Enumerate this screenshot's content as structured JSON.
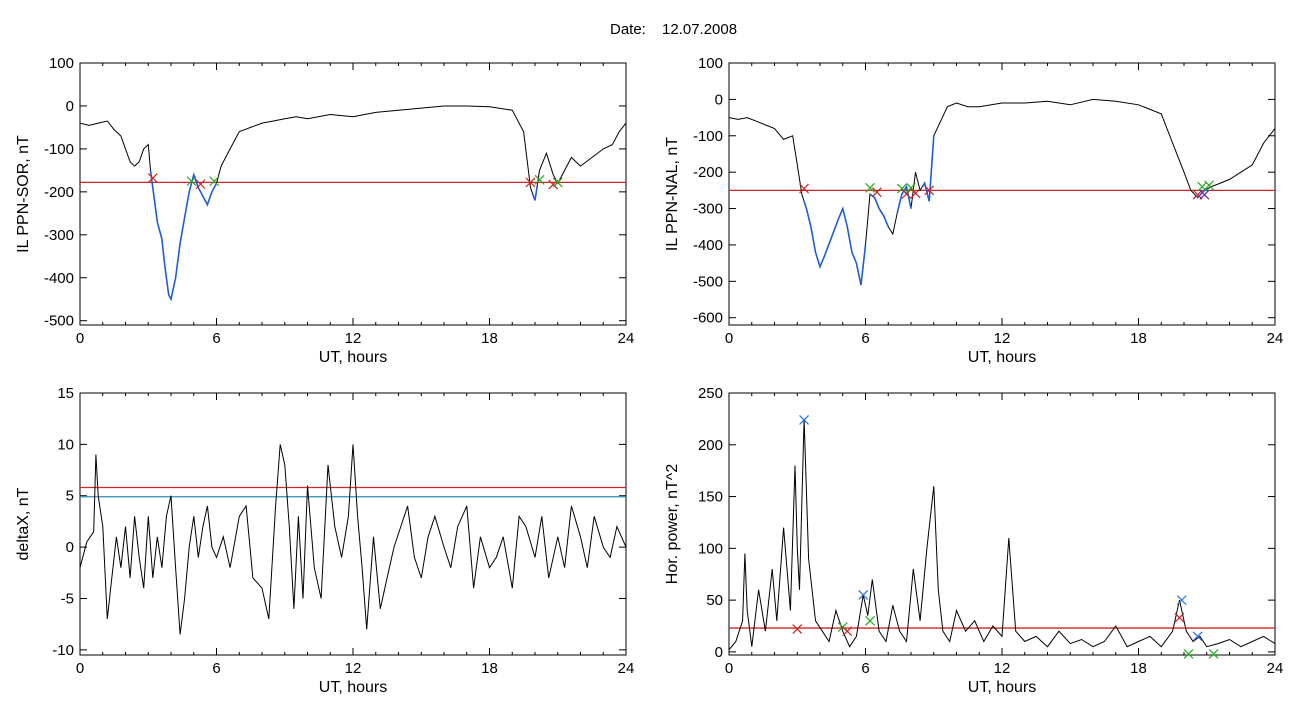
{
  "header": {
    "date_label": "Date:",
    "date_value": "12.07.2008"
  },
  "colors": {
    "background": "#ffffff",
    "axis": "#000000",
    "trace": "#000000",
    "segment": "#1f5fd6",
    "threshold_red": "#d42424",
    "threshold_cyan": "#2a8fb0",
    "marker_red": "#cc2222",
    "marker_green": "#22aa22",
    "marker_blue": "#2b6fd0",
    "marker_purple": "#6a2a9a"
  },
  "chart_data": [
    {
      "id": "ppn-sor",
      "type": "line",
      "title": "",
      "xlabel": "UT, hours",
      "ylabel": "IL PPN-SOR, nT",
      "xlim": [
        0,
        24
      ],
      "ylim": [
        -510,
        100
      ],
      "xticks": [
        0,
        6,
        12,
        18,
        24
      ],
      "yticks": [
        100,
        0,
        -100,
        -200,
        -300,
        -400,
        -500
      ],
      "x": [
        0,
        0.4,
        0.8,
        1.2,
        1.5,
        1.8,
        2.0,
        2.2,
        2.4,
        2.6,
        2.8,
        3.0,
        3.1,
        3.2,
        3.4,
        3.5,
        3.6,
        3.7,
        3.8,
        3.9,
        4.0,
        4.2,
        4.4,
        4.6,
        4.8,
        5.0,
        5.2,
        5.4,
        5.6,
        5.8,
        6.0,
        6.2,
        6.6,
        7.0,
        7.5,
        8.0,
        8.5,
        9.0,
        9.5,
        10.0,
        11.0,
        12.0,
        13.0,
        14.0,
        15.0,
        16.0,
        17.0,
        18.0,
        19.0,
        19.5,
        19.8,
        20.0,
        20.2,
        20.5,
        20.8,
        21.0,
        21.3,
        21.6,
        22.0,
        22.5,
        23.0,
        23.4,
        23.7,
        24.0
      ],
      "y": [
        -40,
        -45,
        -40,
        -35,
        -55,
        -70,
        -100,
        -130,
        -140,
        -130,
        -100,
        -90,
        -150,
        -190,
        -270,
        -290,
        -310,
        -360,
        -400,
        -440,
        -450,
        -400,
        -320,
        -260,
        -200,
        -160,
        -190,
        -210,
        -230,
        -200,
        -180,
        -140,
        -100,
        -60,
        -50,
        -40,
        -35,
        -30,
        -25,
        -30,
        -20,
        -25,
        -15,
        -10,
        -5,
        0,
        0,
        -2,
        -10,
        -60,
        -190,
        -220,
        -150,
        -110,
        -160,
        -180,
        -150,
        -120,
        -140,
        -120,
        -100,
        -90,
        -60,
        -40
      ],
      "threshold_lines": [
        {
          "value": -178,
          "color": "#d42424"
        }
      ],
      "highlight_segments": [
        [
          3.1,
          6.0
        ],
        [
          19.9,
          20.1
        ]
      ],
      "markers": [
        {
          "x": 3.2,
          "y": -168,
          "color": "#cc2222"
        },
        {
          "x": 4.9,
          "y": -175,
          "color": "#22aa22"
        },
        {
          "x": 5.3,
          "y": -182,
          "color": "#cc2222"
        },
        {
          "x": 5.9,
          "y": -175,
          "color": "#22aa22"
        },
        {
          "x": 19.8,
          "y": -178,
          "color": "#cc2222"
        },
        {
          "x": 20.2,
          "y": -172,
          "color": "#22aa22"
        },
        {
          "x": 20.8,
          "y": -183,
          "color": "#cc2222"
        },
        {
          "x": 21.0,
          "y": -178,
          "color": "#22aa22"
        }
      ]
    },
    {
      "id": "ppn-nal",
      "type": "line",
      "title": "",
      "xlabel": "UT, hours",
      "ylabel": "IL PPN-NAL, nT",
      "xlim": [
        0,
        24
      ],
      "ylim": [
        -620,
        100
      ],
      "xticks": [
        0,
        6,
        12,
        18,
        24
      ],
      "yticks": [
        100,
        0,
        -100,
        -200,
        -300,
        -400,
        -500,
        -600
      ],
      "x": [
        0,
        0.4,
        0.8,
        1.2,
        1.6,
        2.0,
        2.4,
        2.8,
        3.0,
        3.2,
        3.4,
        3.6,
        3.8,
        4.0,
        4.2,
        4.5,
        4.8,
        5.0,
        5.2,
        5.4,
        5.6,
        5.8,
        6.0,
        6.2,
        6.4,
        6.6,
        6.8,
        7.0,
        7.2,
        7.4,
        7.6,
        7.8,
        8.0,
        8.2,
        8.4,
        8.6,
        8.8,
        9.0,
        9.3,
        9.6,
        10.0,
        10.5,
        11.0,
        12.0,
        13.0,
        14.0,
        15.0,
        16.0,
        17.0,
        18.0,
        19.0,
        19.5,
        20.0,
        20.3,
        20.6,
        20.9,
        21.2,
        21.6,
        22.0,
        22.5,
        23.0,
        23.5,
        24.0
      ],
      "y": [
        -50,
        -55,
        -50,
        -60,
        -70,
        -80,
        -110,
        -100,
        -180,
        -260,
        -300,
        -350,
        -420,
        -460,
        -430,
        -380,
        -330,
        -300,
        -350,
        -420,
        -450,
        -510,
        -400,
        -260,
        -270,
        -300,
        -320,
        -350,
        -370,
        -310,
        -260,
        -240,
        -300,
        -200,
        -250,
        -230,
        -280,
        -100,
        -60,
        -20,
        -10,
        -20,
        -20,
        -10,
        -10,
        -5,
        -15,
        0,
        -5,
        -15,
        -40,
        -120,
        -200,
        -250,
        -270,
        -250,
        -240,
        -230,
        -220,
        -200,
        -180,
        -120,
        -80
      ],
      "threshold_lines": [
        {
          "value": -250,
          "color": "#d42424"
        }
      ],
      "highlight_segments": [
        [
          3.3,
          6.0
        ],
        [
          6.2,
          7.0
        ],
        [
          7.4,
          8.0
        ],
        [
          8.5,
          9.0
        ],
        [
          20.6,
          21.0
        ]
      ],
      "markers": [
        {
          "x": 3.3,
          "y": -245,
          "color": "#cc2222"
        },
        {
          "x": 6.2,
          "y": -243,
          "color": "#22aa22"
        },
        {
          "x": 6.5,
          "y": -255,
          "color": "#cc2222"
        },
        {
          "x": 7.6,
          "y": -245,
          "color": "#22aa22"
        },
        {
          "x": 7.8,
          "y": -260,
          "color": "#cc2222"
        },
        {
          "x": 8.0,
          "y": -243,
          "color": "#22aa22"
        },
        {
          "x": 8.2,
          "y": -258,
          "color": "#cc2222"
        },
        {
          "x": 8.8,
          "y": -250,
          "color": "#cc2222"
        },
        {
          "x": 20.6,
          "y": -262,
          "color": "#cc2222"
        },
        {
          "x": 20.8,
          "y": -240,
          "color": "#22aa22"
        },
        {
          "x": 20.9,
          "y": -262,
          "color": "#6a2a9a"
        },
        {
          "x": 21.1,
          "y": -236,
          "color": "#22aa22"
        }
      ]
    },
    {
      "id": "deltax",
      "type": "line",
      "title": "",
      "xlabel": "UT, hours",
      "ylabel": "deltaX, nT",
      "xlim": [
        0,
        24
      ],
      "ylim": [
        -10.5,
        15
      ],
      "xticks": [
        0,
        6,
        12,
        18,
        24
      ],
      "yticks": [
        15,
        10,
        5,
        0,
        -5,
        -10
      ],
      "x": [
        0,
        0.3,
        0.6,
        0.7,
        0.8,
        1.0,
        1.2,
        1.4,
        1.6,
        1.8,
        2.0,
        2.2,
        2.4,
        2.6,
        2.8,
        3.0,
        3.2,
        3.4,
        3.6,
        3.8,
        4.0,
        4.2,
        4.4,
        4.6,
        4.8,
        5.0,
        5.2,
        5.4,
        5.6,
        5.8,
        6.0,
        6.3,
        6.6,
        7.0,
        7.3,
        7.6,
        8.0,
        8.3,
        8.6,
        8.8,
        9.0,
        9.2,
        9.4,
        9.6,
        9.8,
        10.0,
        10.3,
        10.6,
        10.9,
        11.2,
        11.5,
        11.8,
        12.0,
        12.2,
        12.4,
        12.6,
        12.9,
        13.2,
        13.5,
        13.8,
        14.1,
        14.4,
        14.7,
        15.0,
        15.3,
        15.6,
        16.0,
        16.3,
        16.6,
        17.0,
        17.3,
        17.6,
        18.0,
        18.3,
        18.6,
        19.0,
        19.3,
        19.6,
        20.0,
        20.3,
        20.6,
        21.0,
        21.3,
        21.6,
        22.0,
        22.3,
        22.6,
        23.0,
        23.3,
        23.6,
        24.0
      ],
      "y": [
        -2,
        0.5,
        1.5,
        9,
        5,
        2,
        -7,
        -3,
        1,
        -2,
        2,
        -3,
        3,
        -1,
        -4,
        3,
        -3,
        1,
        -2,
        3,
        5,
        -2,
        -8.5,
        -5,
        0,
        3,
        -1,
        2,
        4,
        0,
        -1,
        1,
        -2,
        3,
        4,
        -3,
        -4,
        -7,
        4,
        10,
        8,
        2,
        -6,
        3,
        -5,
        6,
        -2,
        -5,
        8,
        2,
        -1,
        3,
        10,
        3,
        -2,
        -8,
        1,
        -6,
        -3,
        0,
        2,
        4,
        -1,
        -3,
        1,
        3,
        0,
        -2,
        2,
        4,
        -4,
        1,
        -2,
        -1,
        1,
        -4,
        3,
        2,
        -1,
        3,
        -3,
        1,
        -2,
        4,
        1,
        -2,
        3,
        0,
        -1,
        2,
        0
      ],
      "threshold_lines": [
        {
          "value": 5.8,
          "color": "#d42424"
        },
        {
          "value": 4.9,
          "color": "#2a8fb0"
        }
      ],
      "highlight_segments": [],
      "markers": []
    },
    {
      "id": "hor-power",
      "type": "line",
      "title": "",
      "xlabel": "UT, hours",
      "ylabel": "Hor. power, nT^2",
      "xlim": [
        0,
        24
      ],
      "ylim": [
        -3,
        250
      ],
      "xticks": [
        0,
        6,
        12,
        18,
        24
      ],
      "yticks": [
        250,
        200,
        150,
        100,
        50,
        0
      ],
      "x": [
        0,
        0.3,
        0.6,
        0.7,
        0.8,
        1.0,
        1.3,
        1.6,
        1.9,
        2.1,
        2.4,
        2.7,
        2.9,
        3.0,
        3.1,
        3.3,
        3.5,
        3.8,
        4.1,
        4.4,
        4.7,
        5.0,
        5.3,
        5.6,
        5.9,
        6.1,
        6.3,
        6.6,
        6.9,
        7.2,
        7.5,
        7.8,
        8.1,
        8.4,
        8.7,
        9.0,
        9.2,
        9.4,
        9.7,
        10.0,
        10.4,
        10.8,
        11.2,
        11.6,
        12.0,
        12.3,
        12.6,
        13.0,
        13.5,
        14.0,
        14.5,
        15.0,
        15.5,
        16.0,
        16.5,
        17.0,
        17.5,
        18.0,
        18.5,
        19.0,
        19.5,
        19.8,
        20.1,
        20.4,
        20.7,
        21.0,
        21.5,
        22.0,
        22.5,
        23.0,
        23.5,
        24.0
      ],
      "y": [
        2,
        10,
        30,
        95,
        40,
        5,
        60,
        20,
        80,
        30,
        120,
        40,
        180,
        100,
        60,
        225,
        90,
        30,
        20,
        10,
        40,
        20,
        5,
        15,
        55,
        35,
        70,
        20,
        10,
        45,
        20,
        10,
        80,
        30,
        100,
        160,
        60,
        20,
        10,
        40,
        20,
        30,
        10,
        25,
        15,
        110,
        20,
        10,
        15,
        5,
        20,
        8,
        12,
        5,
        10,
        25,
        5,
        10,
        15,
        5,
        20,
        50,
        20,
        10,
        15,
        5,
        8,
        12,
        5,
        10,
        15,
        8
      ],
      "threshold_lines": [
        {
          "value": 23,
          "color": "#d42424"
        }
      ],
      "highlight_segments": [],
      "markers": [
        {
          "x": 3.0,
          "y": 22,
          "color": "#cc2222"
        },
        {
          "x": 3.3,
          "y": 224,
          "color": "#2b6fd0"
        },
        {
          "x": 5.0,
          "y": 24,
          "color": "#22aa22"
        },
        {
          "x": 5.2,
          "y": 20,
          "color": "#cc2222"
        },
        {
          "x": 5.9,
          "y": 55,
          "color": "#2b6fd0"
        },
        {
          "x": 6.2,
          "y": 30,
          "color": "#22aa22"
        },
        {
          "x": 19.8,
          "y": 33,
          "color": "#cc2222"
        },
        {
          "x": 19.9,
          "y": 50,
          "color": "#2b6fd0"
        },
        {
          "x": 20.2,
          "y": -2,
          "color": "#22aa22"
        },
        {
          "x": 20.6,
          "y": 15,
          "color": "#2b6fd0"
        },
        {
          "x": 21.3,
          "y": -2,
          "color": "#22aa22"
        }
      ]
    }
  ]
}
